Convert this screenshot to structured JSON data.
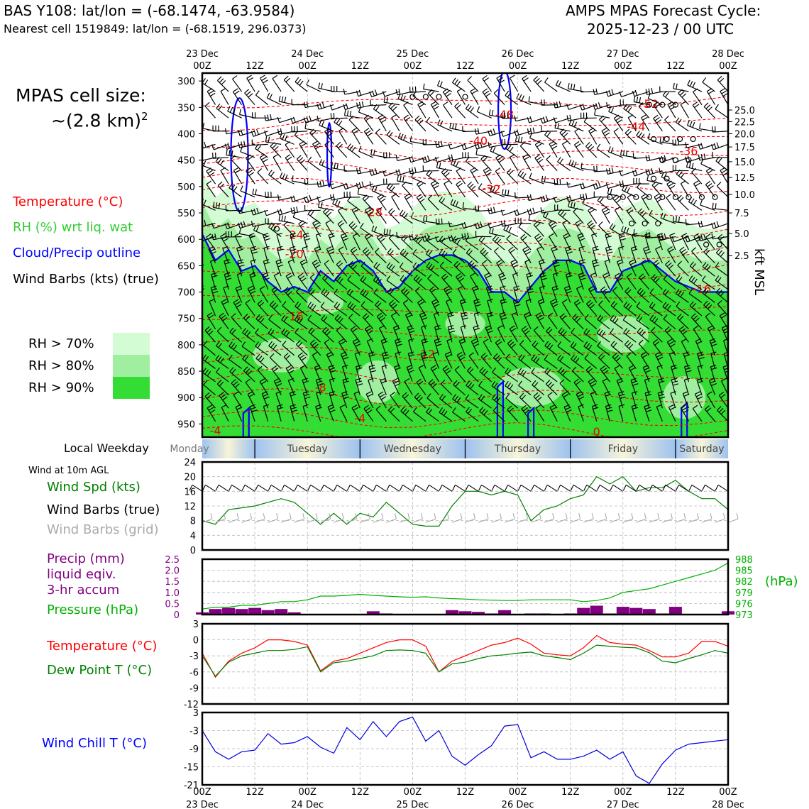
{
  "header": {
    "station_line": "BAS Y108: lat/lon = (-68.1474, -63.9584)",
    "cell_line": "Nearest cell 1519849: lat/lon = (-68.1519, 296.0373)",
    "cycle_line1": "AMPS MPAS Forecast Cycle:",
    "cycle_line2": "2025-12-23 / 00 UTC"
  },
  "legend": {
    "cell_size_line1": "MPAS cell size:",
    "cell_size_line2": "~(2.8 km)",
    "cell_size_sup": "2",
    "temperature": "Temperature (°C)",
    "rh": "RH (%) wrt liq. wat",
    "cloud": "Cloud/Precip outline",
    "barbs": "Wind Barbs (kts) (true)",
    "rh70": "RH > 70%",
    "rh80": "RH > 80%",
    "rh90": "RH > 90%",
    "rh_colors": [
      "#d4fcd4",
      "#a0eea0",
      "#33dd33"
    ],
    "kft_label": "kft MSL"
  },
  "weekday": {
    "label": "Local Weekday",
    "days": [
      "Monday",
      "Tuesday",
      "Wednesday",
      "Thursday",
      "Friday",
      "Saturday"
    ]
  },
  "wind_panel": {
    "title": "Wind at 10m AGL",
    "spd": "Wind Spd (kts)",
    "barbs_true": "Wind Barbs (true)",
    "barbs_grid": "Wind Barbs (grid)"
  },
  "precip_panel": {
    "l1": "Precip (mm)",
    "l2": "liquid eqiv.",
    "l3": "3-hr accum",
    "pressure": "Pressure (hPa)",
    "hpa": "(hPa)"
  },
  "temp_panel": {
    "temp": "Temperature (°C)",
    "dew": "Dew Point T (°C)"
  },
  "chill_panel": {
    "label": "Wind Chill T (°C)"
  },
  "chart_data": {
    "type": "meteogram",
    "time_ticks": [
      "00Z",
      "12Z",
      "00Z",
      "12Z",
      "00Z",
      "12Z",
      "00Z",
      "12Z",
      "00Z",
      "12Z",
      "00Z"
    ],
    "date_labels": [
      "23 Dec",
      "",
      "24 Dec",
      "",
      "25 Dec",
      "",
      "26 Dec",
      "",
      "27 Dec",
      "",
      "28 Dec"
    ],
    "x_hours": [
      0,
      3,
      6,
      9,
      12,
      15,
      18,
      21,
      24,
      27,
      30,
      33,
      36,
      39,
      42,
      45,
      48,
      51,
      54,
      57,
      60,
      63,
      66,
      69,
      72,
      75,
      78,
      81,
      84,
      87,
      90,
      93,
      96,
      99,
      102,
      105,
      108,
      111,
      114,
      117,
      120
    ],
    "profile": {
      "pressure_ticks": [
        300,
        350,
        400,
        450,
        500,
        550,
        600,
        650,
        700,
        750,
        800,
        850,
        900,
        950
      ],
      "kft_ticks": [
        "25.0",
        "22.5",
        "20.0",
        "17.5",
        "15.0",
        "12.5",
        "10.0",
        "7.5",
        "5.0",
        "2.5"
      ],
      "kft_pressures": [
        355,
        377,
        400,
        425,
        453,
        483,
        515,
        550,
        589,
        631
      ],
      "temperature_labels": [
        {
          "text": "-52",
          "hour": 102,
          "p": 343
        },
        {
          "text": "-48",
          "hour": 69,
          "p": 363
        },
        {
          "text": "-44",
          "hour": 99,
          "p": 386
        },
        {
          "text": "-40",
          "hour": 63,
          "p": 413
        },
        {
          "text": "-36",
          "hour": 111,
          "p": 432
        },
        {
          "text": "-32",
          "hour": 66,
          "p": 504
        },
        {
          "text": "-28",
          "hour": 39,
          "p": 548
        },
        {
          "text": "-24",
          "hour": 21,
          "p": 591
        },
        {
          "text": "-20",
          "hour": 21,
          "p": 627
        },
        {
          "text": "-16",
          "hour": 114,
          "p": 694
        },
        {
          "text": "-16",
          "hour": 21,
          "p": 746
        },
        {
          "text": "-12",
          "hour": 51,
          "p": 817
        },
        {
          "text": "-8",
          "hour": 27,
          "p": 880
        },
        {
          "text": "-4",
          "hour": 36,
          "p": 939
        },
        {
          "text": "-4",
          "hour": 3,
          "p": 962
        },
        {
          "text": "0",
          "hour": 90,
          "p": 964
        }
      ],
      "cloud_top_p": [
        590,
        640,
        620,
        660,
        650,
        680,
        700,
        690,
        700,
        660,
        680,
        650,
        640,
        660,
        700,
        690,
        660,
        640,
        630,
        630,
        640,
        660,
        700,
        700,
        720,
        690,
        660,
        640,
        640,
        650,
        700,
        700,
        660,
        650,
        640,
        660,
        680,
        690,
        700,
        700,
        700
      ]
    },
    "wind_speed": {
      "ylim": [
        0,
        24
      ],
      "yticks": [
        0,
        4,
        8,
        12,
        16,
        20,
        24
      ],
      "values": [
        8,
        7,
        11,
        11.5,
        12,
        13,
        14,
        13,
        10,
        7,
        10,
        7,
        10,
        9,
        13,
        10,
        7,
        6.5,
        6.5,
        12,
        16,
        16,
        15,
        16,
        15,
        8,
        11,
        12,
        14,
        15,
        20,
        18,
        20,
        16,
        17,
        17,
        19,
        16,
        14,
        14,
        11
      ]
    },
    "precip": {
      "ylim": [
        0,
        2.5
      ],
      "yticks": [
        "0",
        "0.5",
        "1.0",
        "1.5",
        "2.0",
        "2.5"
      ],
      "values": [
        0.1,
        0.25,
        0.3,
        0.25,
        0.3,
        0.2,
        0.25,
        0.1,
        0,
        0,
        0,
        0,
        0,
        0.15,
        0.05,
        0,
        0,
        0,
        0,
        0.2,
        0.15,
        0.12,
        0.05,
        0.2,
        0,
        0.05,
        0.05,
        0,
        0.05,
        0.3,
        0.4,
        0.05,
        0.35,
        0.3,
        0.25,
        0.05,
        0.35,
        0,
        0,
        0,
        0.15
      ]
    },
    "pressure": {
      "ylim": [
        973,
        988
      ],
      "yticks": [
        "973",
        "976",
        "979",
        "982",
        "985",
        "988"
      ],
      "values": [
        974.5,
        975,
        975,
        975.5,
        975.5,
        976,
        976.5,
        976.5,
        977,
        978,
        978,
        978.2,
        978.5,
        978.2,
        978,
        977.8,
        977.7,
        977.8,
        977.5,
        977.3,
        977.2,
        977,
        976.9,
        976.8,
        976.8,
        977,
        977,
        977,
        977,
        976.5,
        976.8,
        977.5,
        979,
        979.5,
        980,
        981,
        982,
        983,
        984,
        985,
        987
      ]
    },
    "temperature": {
      "ylim": [
        -12,
        3
      ],
      "yticks": [
        3,
        0,
        -3,
        -6,
        -9,
        -12
      ],
      "series": [
        {
          "name": "Temperature (°C)",
          "color": "#ff0000",
          "values": [
            -2.5,
            -7,
            -4,
            -2.5,
            -1.5,
            0,
            0,
            -0.3,
            -1,
            -5.8,
            -4,
            -3.5,
            -2.5,
            -1.5,
            -0.5,
            0,
            0,
            -1.2,
            -6,
            -4,
            -3,
            -2,
            -1,
            -0.5,
            0.3,
            -0.8,
            -2.5,
            -2.8,
            -3,
            -1.5,
            0.8,
            -0.5,
            -0.8,
            -1,
            -2,
            -3.2,
            -3.2,
            -2.5,
            -0.3,
            -0.3,
            -1.2
          ]
        },
        {
          "name": "Dew Point T (°C)",
          "color": "#008000",
          "values": [
            -3,
            -6.8,
            -4.2,
            -3,
            -2.5,
            -2,
            -2,
            -1.8,
            -1.3,
            -6,
            -4.3,
            -4,
            -3.5,
            -3,
            -2,
            -1.9,
            -2,
            -2.5,
            -6,
            -4.5,
            -4.2,
            -3.5,
            -3,
            -2.8,
            -2.5,
            -2.3,
            -3,
            -3.3,
            -3.7,
            -2.5,
            -1,
            -1.2,
            -1.4,
            -1.5,
            -2.4,
            -4,
            -4.3,
            -3.5,
            -2.8,
            -2,
            -2.5
          ]
        }
      ]
    },
    "wind_chill": {
      "ylim": [
        -21,
        3
      ],
      "yticks": [
        3,
        -3,
        -9,
        -15,
        -21
      ],
      "values": [
        -3,
        -10,
        -12.5,
        -10,
        -9.5,
        -4,
        -7.5,
        -7,
        -5,
        -8.5,
        -10.5,
        -2,
        -6,
        0,
        -5,
        0,
        1.5,
        -6.5,
        -3,
        -11.5,
        -14.5,
        -11,
        -8,
        -1.5,
        -1,
        -12,
        -10,
        -12.5,
        -12.5,
        -11.5,
        -9.5,
        -12.5,
        -10,
        -18,
        -20.5,
        -14,
        -9.5,
        -7.5,
        -7,
        -6.5,
        -6
      ]
    }
  }
}
